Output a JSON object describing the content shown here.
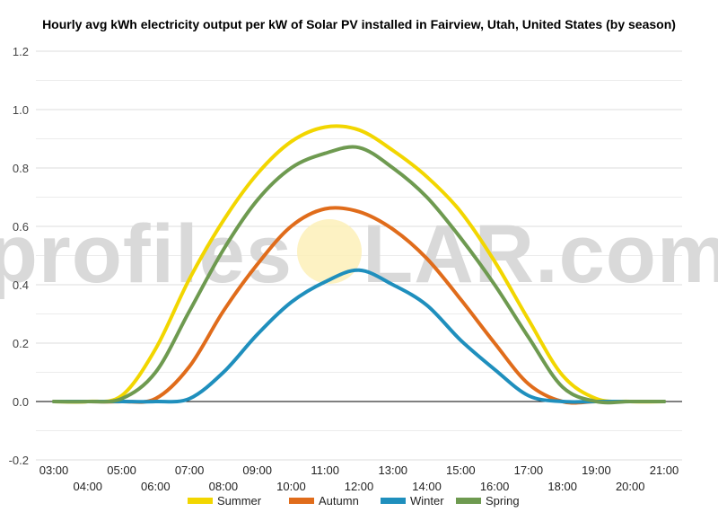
{
  "chart_data": {
    "type": "line",
    "title": "Hourly avg kWh electricity output per kW of Solar PV installed in Fairview, Utah, United States (by season)",
    "watermark": {
      "left": "profiles",
      "right": "LAR.com"
    },
    "xlabel": "",
    "ylabel": "",
    "ylim": [
      -0.2,
      1.2
    ],
    "yticks": [
      "-0.2",
      "0.0",
      "0.2",
      "0.4",
      "0.6",
      "0.8",
      "1.0",
      "1.2"
    ],
    "ytick_values": [
      -0.2,
      0,
      0.2,
      0.4,
      0.6,
      0.8,
      1.0,
      1.2
    ],
    "x": [
      "03:00",
      "04:00",
      "05:00",
      "06:00",
      "07:00",
      "08:00",
      "09:00",
      "10:00",
      "11:00",
      "12:00",
      "13:00",
      "14:00",
      "15:00",
      "16:00",
      "17:00",
      "18:00",
      "19:00",
      "20:00",
      "21:00"
    ],
    "grid": true,
    "legend_position": "bottom",
    "series": [
      {
        "name": "Summer",
        "color": "#f2d600",
        "values": [
          0.0,
          0.0,
          0.02,
          0.18,
          0.42,
          0.62,
          0.78,
          0.89,
          0.94,
          0.93,
          0.86,
          0.77,
          0.65,
          0.48,
          0.28,
          0.09,
          0.01,
          0.0,
          0.0
        ]
      },
      {
        "name": "Autumn",
        "color": "#e06c1b",
        "values": [
          0.0,
          0.0,
          0.0,
          0.01,
          0.12,
          0.31,
          0.47,
          0.6,
          0.66,
          0.65,
          0.59,
          0.49,
          0.35,
          0.2,
          0.06,
          0.0,
          0.0,
          0.0,
          0.0
        ]
      },
      {
        "name": "Winter",
        "color": "#1f8fbd",
        "values": [
          0.0,
          0.0,
          0.0,
          0.0,
          0.01,
          0.1,
          0.23,
          0.34,
          0.41,
          0.45,
          0.4,
          0.33,
          0.21,
          0.11,
          0.02,
          0.0,
          0.0,
          0.0,
          0.0
        ]
      },
      {
        "name": "Spring",
        "color": "#6e9a50",
        "values": [
          0.0,
          0.0,
          0.01,
          0.1,
          0.31,
          0.52,
          0.69,
          0.8,
          0.85,
          0.87,
          0.8,
          0.7,
          0.56,
          0.4,
          0.22,
          0.05,
          0.0,
          0.0,
          0.0
        ]
      }
    ]
  }
}
